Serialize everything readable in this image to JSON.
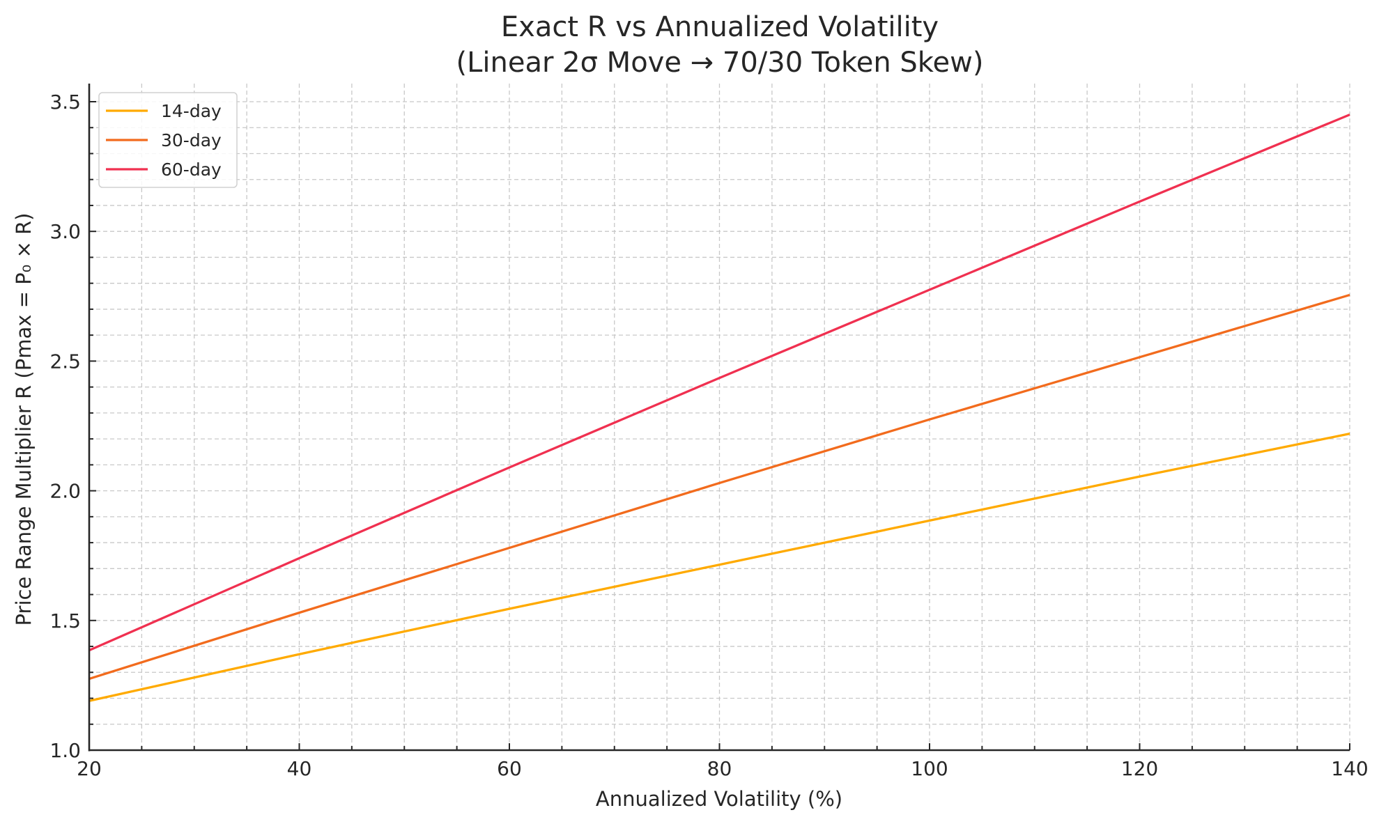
{
  "chart_data": {
    "type": "line",
    "title": "Exact R vs Annualized Volatility",
    "subtitle": "(Linear 2σ Move → 70/30 Token Skew)",
    "xlabel": "Annualized Volatility (%)",
    "ylabel": "Price Range Multiplier R (Pmax = P₀ × R)",
    "xlim": [
      20,
      140
    ],
    "ylim": [
      1.0,
      3.56
    ],
    "xticks": [
      20,
      40,
      60,
      80,
      100,
      120,
      140
    ],
    "xtick_labels": [
      "20",
      "40",
      "60",
      "80",
      "100",
      "120",
      "140"
    ],
    "yticks": [
      1.0,
      1.5,
      2.0,
      2.5,
      3.0,
      3.5
    ],
    "ytick_labels": [
      "1.0",
      "1.5",
      "2.0",
      "2.5",
      "3.0",
      "3.5"
    ],
    "x_minor_step": 5,
    "y_minor_step": 0.1,
    "grid": true,
    "legend_position": "top-left",
    "x": [
      20,
      40,
      60,
      80,
      100,
      120,
      140
    ],
    "series": [
      {
        "name": "14-day",
        "color": "#ffaa00",
        "values": [
          1.19,
          1.37,
          1.545,
          1.715,
          1.885,
          2.055,
          2.22
        ]
      },
      {
        "name": "30-day",
        "color": "#f26b1d",
        "values": [
          1.275,
          1.53,
          1.78,
          2.03,
          2.275,
          2.515,
          2.755
        ]
      },
      {
        "name": "60-day",
        "color": "#f03050",
        "values": [
          1.385,
          1.74,
          2.09,
          2.435,
          2.775,
          3.115,
          3.45
        ]
      }
    ]
  }
}
